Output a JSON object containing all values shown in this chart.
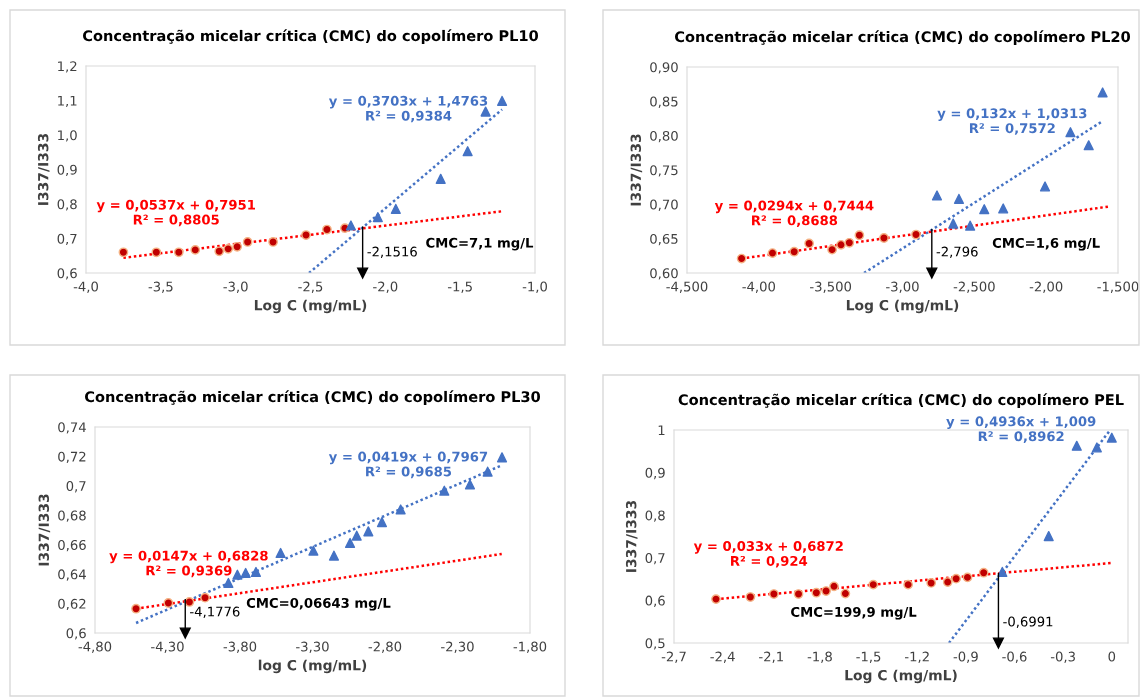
{
  "chart_data": [
    {
      "type": "scatter",
      "title": "Concentração micelar crítica (CMC) do copolímero PL10",
      "xlabel": "Log C (mg/mL)",
      "ylabel": "I337/I333",
      "xlim": [
        -4.0,
        -1.0
      ],
      "xticks": [
        {
          "value": -4.0,
          "label": "-4,0"
        },
        {
          "value": -3.5,
          "label": "-3,5"
        },
        {
          "value": -3.0,
          "label": "-3,0"
        },
        {
          "value": -2.5,
          "label": "-2,5"
        },
        {
          "value": -2.0,
          "label": "-2,0"
        },
        {
          "value": -1.5,
          "label": "-1,5"
        },
        {
          "value": -1.0,
          "label": "-1,0"
        }
      ],
      "ylim": [
        0.6,
        1.2
      ],
      "yticks": [
        {
          "value": 0.6,
          "label": "0,6"
        },
        {
          "value": 0.7,
          "label": "0,7"
        },
        {
          "value": 0.8,
          "label": "0,8"
        },
        {
          "value": 0.9,
          "label": "0,9"
        },
        {
          "value": 1.0,
          "label": "1,0"
        },
        {
          "value": 1.1,
          "label": "1,1"
        },
        {
          "value": 1.2,
          "label": "1,2"
        }
      ],
      "grid": false,
      "legend": false,
      "series": [
        {
          "type": "scatter",
          "marker": "circle",
          "color": "#c00000",
          "x": [
            -3.75,
            -3.53,
            -3.38,
            -3.27,
            -3.11,
            -3.05,
            -2.99,
            -2.92,
            -2.75,
            -2.53,
            -2.39,
            -2.27
          ],
          "values": [
            0.66,
            0.66,
            0.66,
            0.667,
            0.663,
            0.67,
            0.676,
            0.69,
            0.69,
            0.71,
            0.726,
            0.73
          ]
        },
        {
          "type": "scatter",
          "marker": "triangle",
          "color": "#4472c4",
          "x": [
            -2.23,
            -2.05,
            -1.93,
            -1.63,
            -1.45,
            -1.33,
            -1.22
          ],
          "values": [
            0.738,
            0.762,
            0.786,
            0.873,
            0.953,
            1.068,
            1.099
          ]
        },
        {
          "type": "line",
          "line_style": "dotted",
          "color": "#ff0000",
          "name": "y = 0,0537x + 0,7951\nR² = 0,8805",
          "x": [
            -3.75,
            -1.22
          ],
          "values": [
            0.644,
            0.779
          ]
        },
        {
          "type": "line",
          "line_style": "dotted",
          "color": "#4472c4",
          "name": "y = 0,3703x + 1,4763\nR² = 0,9384",
          "x": [
            -2.51,
            -1.22
          ],
          "values": [
            0.6,
            1.074
          ]
        },
        {
          "type": "line",
          "line_style": "solid",
          "color": "#000000",
          "name": "-2,1516",
          "marker": "triangle",
          "x": [
            -2.1516,
            -2.1516
          ],
          "values": [
            0.733,
            0.6
          ]
        }
      ],
      "annotations": [
        "CMC=7,1 mg/L"
      ]
    },
    {
      "type": "scatter",
      "title": "Concentração micelar crítica (CMC) do copolímero PL20",
      "xlabel": "Log C (mg/mL)",
      "ylabel": "I337/I333",
      "xlim": [
        -4.5,
        -1.5
      ],
      "xticks": [
        {
          "value": -4.5,
          "label": "-4,500"
        },
        {
          "value": -4.0,
          "label": "-4,00"
        },
        {
          "value": -3.5,
          "label": "-3,500"
        },
        {
          "value": -3.0,
          "label": "-3,00"
        },
        {
          "value": -2.5,
          "label": "-2,500"
        },
        {
          "value": -2.0,
          "label": "-2,00"
        },
        {
          "value": -1.5,
          "label": "-1,500"
        }
      ],
      "ylim": [
        0.6,
        0.9
      ],
      "yticks": [
        {
          "value": 0.6,
          "label": "0,60"
        },
        {
          "value": 0.65,
          "label": "0,65"
        },
        {
          "value": 0.7,
          "label": "0,70"
        },
        {
          "value": 0.75,
          "label": "0,75"
        },
        {
          "value": 0.8,
          "label": "0,80"
        },
        {
          "value": 0.85,
          "label": "0,85"
        },
        {
          "value": 0.9,
          "label": "0,90"
        }
      ],
      "grid": false,
      "legend": false,
      "series": [
        {
          "type": "scatter",
          "marker": "circle",
          "color": "#c00000",
          "x": [
            -4.12,
            -3.905,
            -3.754,
            -3.65,
            -3.49,
            -3.428,
            -3.37,
            -3.3,
            -3.129,
            -2.906
          ],
          "values": [
            0.621,
            0.629,
            0.631,
            0.643,
            0.634,
            0.641,
            0.644,
            0.655,
            0.651,
            0.656
          ]
        },
        {
          "type": "scatter",
          "marker": "triangle",
          "color": "#4472c4",
          "x": [
            -2.76,
            -2.647,
            -2.607,
            -2.529,
            -2.431,
            -2.299,
            -2.008,
            -1.831,
            -1.704,
            -1.607
          ],
          "values": [
            0.713,
            0.672,
            0.708,
            0.669,
            0.693,
            0.694,
            0.726,
            0.805,
            0.786,
            0.863
          ]
        },
        {
          "type": "line",
          "line_style": "dotted",
          "color": "#ff0000",
          "name": "y = 0,0294x + 0,7444\nR² = 0,8688",
          "x": [
            -4.12,
            -1.558
          ],
          "values": [
            0.621,
            0.697
          ]
        },
        {
          "type": "line",
          "line_style": "dotted",
          "color": "#4472c4",
          "name": "y = 0,132x + 1,0313\nR² = 0,7572",
          "x": [
            -3.268,
            -1.616
          ],
          "values": [
            0.6,
            0.82
          ]
        },
        {
          "type": "line",
          "line_style": "solid",
          "color": "#000000",
          "name": "-2,796",
          "marker": "triangle",
          "x": [
            -2.796,
            -2.796
          ],
          "values": [
            0.663,
            0.6
          ]
        }
      ],
      "annotations": [
        "CMC=1,6 mg/L"
      ]
    },
    {
      "type": "scatter",
      "title": "Concentração micelar crítica (CMC) do copolímero PL30",
      "xlabel": "log C (mg/mL)",
      "ylabel": "I337/I333",
      "xlim": [
        -4.8,
        -1.8
      ],
      "xticks": [
        {
          "value": -4.8,
          "label": "-4,80"
        },
        {
          "value": -4.3,
          "label": "-4,30"
        },
        {
          "value": -3.8,
          "label": "-3,80"
        },
        {
          "value": -3.3,
          "label": "-3,30"
        },
        {
          "value": -2.8,
          "label": "-2,80"
        },
        {
          "value": -2.3,
          "label": "-2,30"
        },
        {
          "value": -1.8,
          "label": "-1,80"
        }
      ],
      "ylim": [
        0.6,
        0.74
      ],
      "yticks": [
        {
          "value": 0.6,
          "label": "0,6"
        },
        {
          "value": 0.62,
          "label": "0,62"
        },
        {
          "value": 0.64,
          "label": "0,64"
        },
        {
          "value": 0.66,
          "label": "0,66"
        },
        {
          "value": 0.68,
          "label": "0,68"
        },
        {
          "value": 0.7,
          "label": "0,7"
        },
        {
          "value": 0.72,
          "label": "0,72"
        },
        {
          "value": 0.74,
          "label": "0,74"
        }
      ],
      "grid": false,
      "legend": false,
      "series": [
        {
          "type": "scatter",
          "marker": "circle",
          "color": "#c00000",
          "x": [
            -4.517,
            -4.294,
            -4.149,
            -4.041
          ],
          "values": [
            0.6165,
            0.6204,
            0.6211,
            0.624
          ]
        },
        {
          "type": "scatter",
          "marker": "triangle",
          "color": "#4472c4",
          "x": [
            -3.88,
            -3.818,
            -3.761,
            -3.69,
            -3.52,
            -3.294,
            -3.152,
            -3.041,
            -2.995,
            -2.915,
            -2.821,
            -2.692,
            -2.391,
            -2.214,
            -2.092,
            -1.993
          ],
          "values": [
            0.634,
            0.6396,
            0.6408,
            0.6415,
            0.6544,
            0.656,
            0.6526,
            0.6612,
            0.6662,
            0.6691,
            0.6754,
            0.684,
            0.6967,
            0.701,
            0.7097,
            0.7194
          ]
        },
        {
          "type": "line",
          "line_style": "dotted",
          "color": "#ff0000",
          "name": "y = 0,0147x + 0,6828\nR² = 0,9369",
          "x": [
            -4.517,
            -1.995
          ],
          "values": [
            0.6165,
            0.6537
          ]
        },
        {
          "type": "line",
          "line_style": "dotted",
          "color": "#4472c4",
          "name": "y = 0,0419x + 0,7967\nR² = 0,9685",
          "x": [
            -4.517,
            -1.993
          ],
          "values": [
            0.6068,
            0.714
          ]
        },
        {
          "type": "line",
          "line_style": "solid",
          "color": "#000000",
          "name": "-4,1776",
          "marker": "triangle",
          "x": [
            -4.1776,
            -4.1776
          ],
          "values": [
            0.6227,
            0.6
          ]
        }
      ],
      "annotations": [
        "CMC=0,06643 mg/L"
      ]
    },
    {
      "type": "scatter",
      "title": "Concentração micelar crítica (CMC) do copolímero PEL",
      "xlabel": "Log C (mg/mL)",
      "ylabel": "I337/I333",
      "xlim": [
        -2.7,
        0.1
      ],
      "xticks": [
        {
          "value": -2.7,
          "label": "-2,7"
        },
        {
          "value": -2.4,
          "label": "-2,4"
        },
        {
          "value": -2.1,
          "label": "-2,1"
        },
        {
          "value": -1.8,
          "label": "-1,8"
        },
        {
          "value": -1.5,
          "label": "-1,5"
        },
        {
          "value": -1.2,
          "label": "-1,2"
        },
        {
          "value": -0.9,
          "label": "-0,9"
        },
        {
          "value": -0.6,
          "label": "-0,6"
        },
        {
          "value": -0.3,
          "label": "-0,3"
        },
        0
      ],
      "ylim": [
        0.5,
        1.0
      ],
      "yticks": [
        {
          "value": 0.5,
          "label": "0,5"
        },
        {
          "value": 0.6,
          "label": "0,6"
        },
        {
          "value": 0.7,
          "label": "0,7"
        },
        {
          "value": 0.8,
          "label": "0,8"
        },
        {
          "value": 0.9,
          "label": "0,9"
        },
        1
      ],
      "grid": false,
      "legend": false,
      "series": [
        {
          "type": "scatter",
          "marker": "circle",
          "color": "#c00000",
          "x": [
            -2.441,
            -2.229,
            -2.084,
            -1.932,
            -1.822,
            -1.762,
            -1.713,
            -1.643,
            -1.471,
            -1.256,
            -1.114,
            -1.012,
            -0.96,
            -0.89,
            -0.79
          ],
          "values": [
            0.603,
            0.608,
            0.615,
            0.615,
            0.618,
            0.622,
            0.633,
            0.616,
            0.637,
            0.637,
            0.641,
            0.643,
            0.651,
            0.654,
            0.665
          ]
        },
        {
          "type": "scatter",
          "marker": "triangle",
          "color": "#4472c4",
          "x": [
            -0.675,
            -0.389,
            -0.216,
            -0.092,
            0.0
          ],
          "values": [
            0.667,
            0.751,
            0.963,
            0.959,
            0.982
          ]
        },
        {
          "type": "line",
          "line_style": "dotted",
          "color": "#ff0000",
          "name": "y = 0,033x + 0,6872\nR² = 0,924",
          "x": [
            -2.441,
            0.0
          ],
          "values": [
            0.603,
            0.688
          ]
        },
        {
          "type": "line",
          "line_style": "dotted",
          "color": "#4472c4",
          "name": "y = 0,4936x + 1,009\nR² = 0,8962",
          "x": [
            -1.004,
            -0.01
          ],
          "values": [
            0.5,
            1.0
          ]
        },
        {
          "type": "line",
          "line_style": "solid",
          "color": "#000000",
          "name": "-0,6991",
          "marker": "triangle",
          "x": [
            -0.6991,
            -0.6991
          ],
          "values": [
            0.663,
            0.5
          ]
        }
      ],
      "annotations": [
        "CMC=199,9 mg/L"
      ]
    }
  ]
}
